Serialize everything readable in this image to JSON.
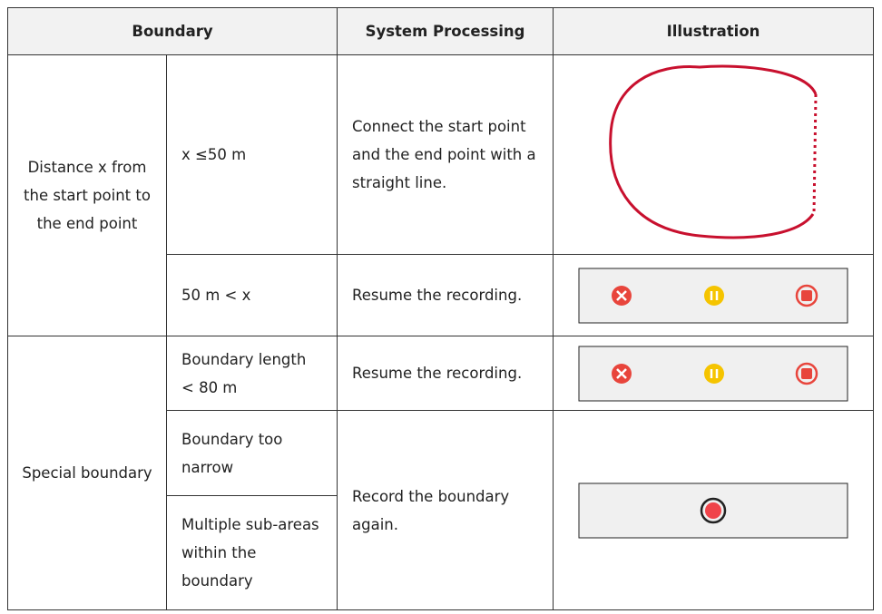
{
  "table": {
    "header": [
      "Boundary",
      "System Processing",
      "Illustration"
    ],
    "groups": [
      {
        "label": "Distance x from the start point to the end point",
        "cases": [
          {
            "condition": "x ≤50 m",
            "processing": "Connect the start point and the end point with a straight line."
          },
          {
            "condition": "50 m < x",
            "processing": "Resume the recording."
          }
        ]
      },
      {
        "label": "Special boundary",
        "cases": [
          {
            "condition": "Boundary length < 80 m",
            "processing": "Resume the recording."
          },
          {
            "condition": "Boundary too narrow",
            "processing": "Record the boundary again."
          },
          {
            "condition": "Multiple sub-areas within the boundary"
          }
        ]
      }
    ]
  }
}
